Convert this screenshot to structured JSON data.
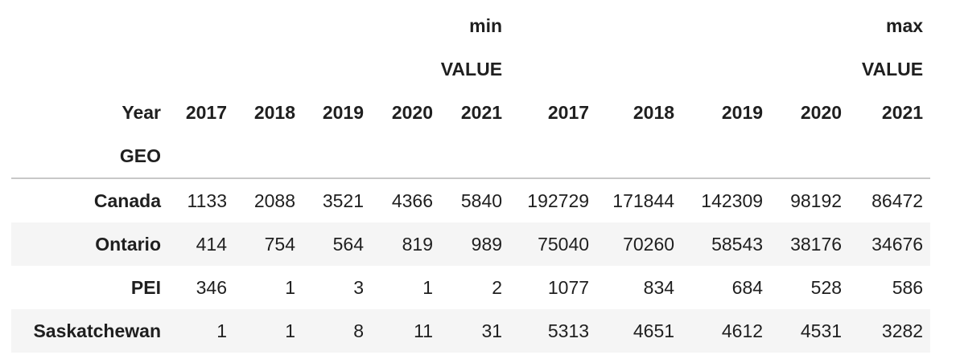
{
  "table": {
    "column_levels": {
      "stat": [
        "min",
        "max"
      ],
      "measure": [
        "VALUE",
        "VALUE"
      ],
      "years": [
        "2017",
        "2018",
        "2019",
        "2020",
        "2021",
        "2017",
        "2018",
        "2019",
        "2020",
        "2021"
      ]
    },
    "column_axis_name": "Year",
    "index_name": "GEO",
    "rows": [
      {
        "geo": "Canada",
        "values": [
          "1133",
          "2088",
          "3521",
          "4366",
          "5840",
          "192729",
          "171844",
          "142309",
          "98192",
          "86472"
        ]
      },
      {
        "geo": "Ontario",
        "values": [
          "414",
          "754",
          "564",
          "819",
          "989",
          "75040",
          "70260",
          "58543",
          "38176",
          "34676"
        ]
      },
      {
        "geo": "PEI",
        "values": [
          "346",
          "1",
          "3",
          "1",
          "2",
          "1077",
          "834",
          "684",
          "528",
          "586"
        ]
      },
      {
        "geo": "Saskatchewan",
        "values": [
          "1",
          "1",
          "8",
          "11",
          "31",
          "5313",
          "4651",
          "4612",
          "4531",
          "3282"
        ]
      }
    ]
  }
}
